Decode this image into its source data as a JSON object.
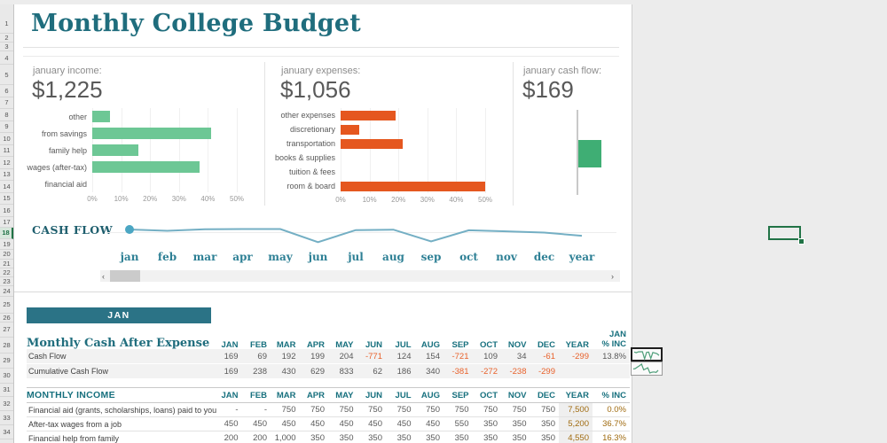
{
  "page": {
    "title": "Monthly College Budget"
  },
  "grid": {
    "row_numbers": [
      "1",
      "2",
      "3",
      "4",
      "5",
      "6",
      "7",
      "8",
      "9",
      "10",
      "11",
      "12",
      "13",
      "14",
      "15",
      "16",
      "17",
      "18",
      "19",
      "20",
      "21",
      "22",
      "23",
      "24",
      "25",
      "26",
      "27",
      "28",
      "29",
      "30",
      "31",
      "32",
      "33",
      "34"
    ],
    "selected_row": "18"
  },
  "summary": {
    "income": {
      "label": "january income:",
      "value": "$1,225"
    },
    "expenses": {
      "label": "january expenses:",
      "value": "$1,056"
    },
    "cashflow": {
      "label": "january cash flow:",
      "value": "$169"
    }
  },
  "chart_data": [
    {
      "type": "bar",
      "orientation": "horizontal",
      "title": "january income",
      "categories": [
        "other",
        "from savings",
        "family help",
        "wages (after-tax)",
        "financial aid"
      ],
      "values": [
        6,
        41,
        16,
        37,
        0
      ],
      "unit": "%",
      "ticks": [
        "0%",
        "10%",
        "20%",
        "30%",
        "40%",
        "50%"
      ],
      "xlim": [
        0,
        50
      ],
      "color": "#6DC795"
    },
    {
      "type": "bar",
      "orientation": "horizontal",
      "title": "january expenses",
      "categories": [
        "other expenses",
        "discretionary",
        "transportation",
        "books & supplies",
        "tuition & fees",
        "room & board"
      ],
      "values": [
        19,
        6.5,
        21.5,
        0,
        0,
        50
      ],
      "unit": "%",
      "ticks": [
        "0%",
        "10%",
        "20%",
        "30%",
        "40%",
        "50%"
      ],
      "xlim": [
        0,
        50
      ],
      "color": "#E5571F"
    },
    {
      "type": "column",
      "title": "january cash flow",
      "value": 169,
      "color": "#3FAE74"
    },
    {
      "type": "line",
      "title": "CASH FLOW",
      "x": [
        "jan",
        "feb",
        "mar",
        "apr",
        "may",
        "jun",
        "jul",
        "aug",
        "sep",
        "oct",
        "nov",
        "dec",
        "year"
      ],
      "values": [
        169,
        69,
        192,
        199,
        204,
        -771,
        124,
        154,
        -721,
        109,
        34,
        -61,
        -299
      ],
      "color": "#74AFC4"
    }
  ],
  "cashflow_strip": {
    "label": "CASH FLOW"
  },
  "scrollbar": {
    "left_arrow": "‹",
    "right_arrow": "›"
  },
  "month_banner": "JAN",
  "tables": {
    "t1": {
      "title": "Monthly Cash After Expense",
      "columns": [
        "JAN",
        "FEB",
        "MAR",
        "APR",
        "MAY",
        "JUN",
        "JUL",
        "AUG",
        "SEP",
        "OCT",
        "NOV",
        "DEC",
        "YEAR"
      ],
      "last_col": {
        "top": "JAN",
        "bottom": "% INC"
      },
      "rows": [
        {
          "label": "Cash Flow",
          "values": [
            "169",
            "69",
            "192",
            "199",
            "204",
            "-771",
            "124",
            "154",
            "-721",
            "109",
            "34",
            "-61"
          ],
          "year": "-299",
          "pct": "13.8%"
        },
        {
          "label": "Cumulative Cash Flow",
          "values": [
            "169",
            "238",
            "430",
            "629",
            "833",
            "62",
            "186",
            "340",
            "-381",
            "-272",
            "-238",
            "-299"
          ],
          "year": "",
          "pct": ""
        }
      ]
    },
    "t2": {
      "title": "MONTHLY INCOME",
      "columns": [
        "JAN",
        "FEB",
        "MAR",
        "APR",
        "MAY",
        "JUN",
        "JUL",
        "AUG",
        "SEP",
        "OCT",
        "NOV",
        "DEC",
        "YEAR",
        "% INC"
      ],
      "rows": [
        {
          "label": "Financial aid (grants, scholarships, loans) paid to you",
          "values": [
            "-",
            "-",
            "750",
            "750",
            "750",
            "750",
            "750",
            "750",
            "750",
            "750",
            "750",
            "750"
          ],
          "year": "7,500",
          "pct": "0.0%"
        },
        {
          "label": "After-tax wages from a job",
          "values": [
            "450",
            "450",
            "450",
            "450",
            "450",
            "450",
            "450",
            "450",
            "550",
            "350",
            "350",
            "350"
          ],
          "year": "5,200",
          "pct": "36.7%"
        },
        {
          "label": "Financial help from family",
          "values": [
            "200",
            "200",
            "1,000",
            "350",
            "350",
            "350",
            "350",
            "350",
            "350",
            "350",
            "350",
            "350"
          ],
          "year": "4,550",
          "pct": "16.3%"
        }
      ]
    }
  }
}
